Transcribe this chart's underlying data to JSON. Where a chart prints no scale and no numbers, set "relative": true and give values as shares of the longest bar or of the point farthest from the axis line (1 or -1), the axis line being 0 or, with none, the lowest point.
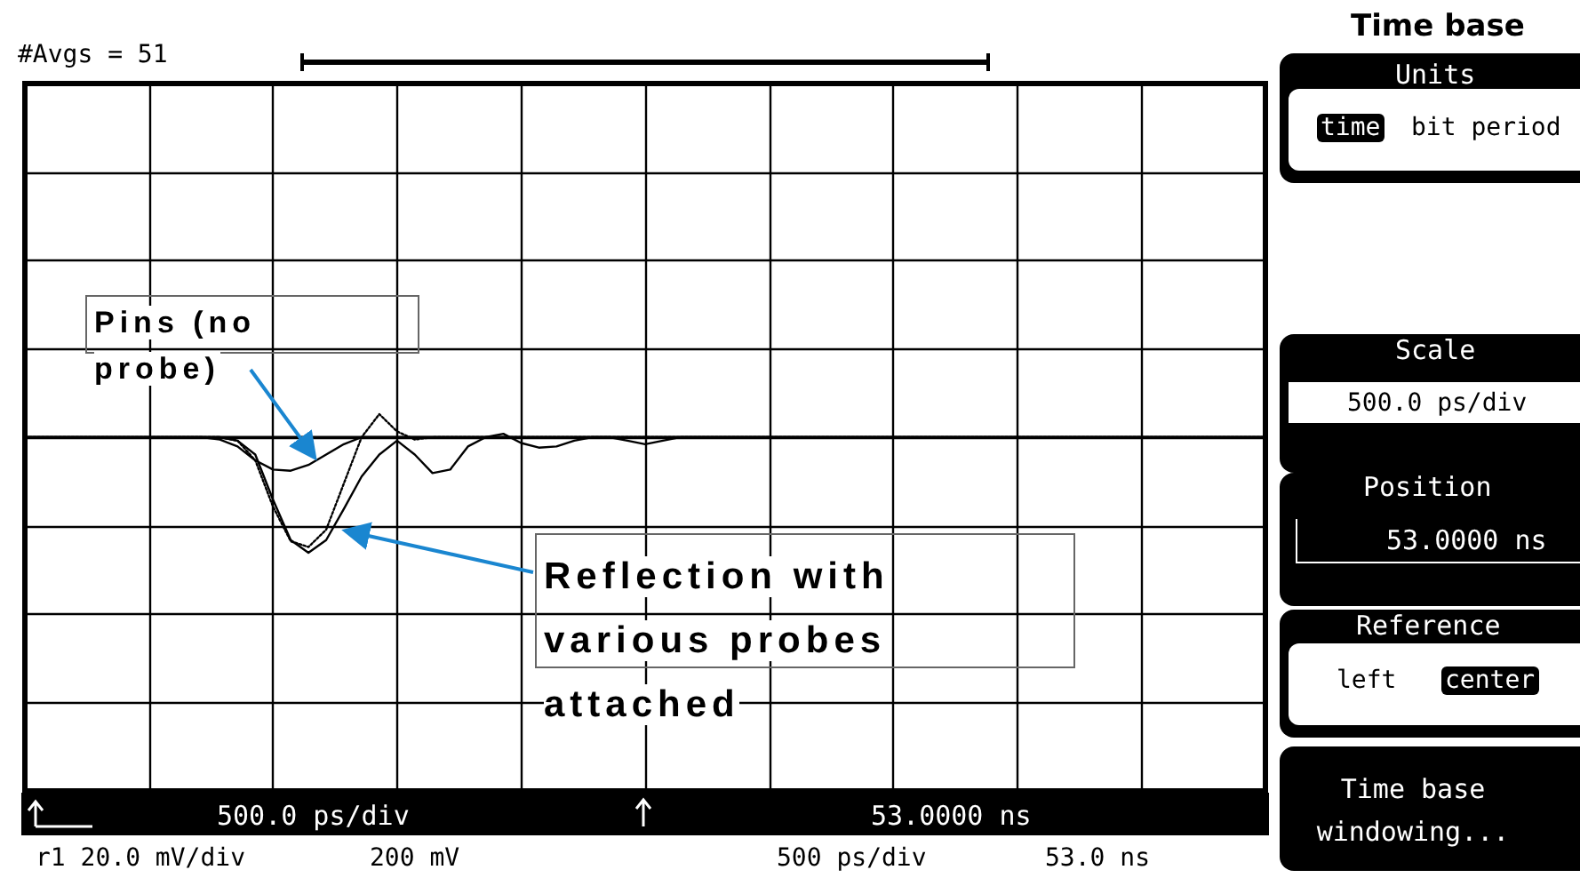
{
  "chart_data": {
    "type": "line",
    "relative": true,
    "grid": true,
    "marker": "none",
    "categories": [
      null,
      null,
      null,
      null,
      null,
      null,
      null,
      null,
      null,
      null,
      null,
      null,
      null,
      null,
      null,
      null,
      null,
      null,
      null,
      null,
      null,
      null,
      null,
      null,
      null,
      null,
      null,
      null,
      null,
      null,
      null,
      null,
      null,
      null,
      null,
      null,
      null,
      null,
      null,
      null,
      null,
      null,
      null,
      null,
      null,
      null,
      null,
      null,
      null,
      null,
      null,
      null,
      null,
      null,
      null,
      null,
      null,
      null,
      null,
      null,
      null,
      null,
      null,
      null,
      null,
      null,
      null,
      null,
      null,
      null,
      null
    ],
    "annotations": [
      "#Avgs = 51",
      "Pins (no probe)",
      "Reflection with various probes attached",
      "500.0 ps/div",
      "53.0000 ns",
      "r1 20.0 mV/div",
      "200 mV",
      "500 ps/div",
      "53.0 ns",
      "Time base",
      "Units",
      "time",
      "bit period",
      "Scale",
      "500.0 ps/div",
      "Position",
      "53.0000 ns",
      "Reference",
      "left",
      "center",
      "Time base windowing..."
    ],
    "series": [
      {
        "color": "#000000",
        "line_style": "solid",
        "values": [
          0,
          0,
          0,
          0,
          0,
          0,
          0,
          0,
          0,
          0,
          0,
          0,
          -0.03,
          -0.15,
          -0.54,
          -0.89,
          -1,
          -0.89,
          -0.62,
          -0.34,
          -0.15,
          -0.03,
          -0.15,
          -0.31,
          -0.28,
          -0.08,
          0,
          0.03,
          -0.05,
          -0.09,
          -0.08,
          -0.03,
          0,
          0,
          -0.03,
          -0.06,
          -0.03,
          0,
          0,
          0,
          0,
          0,
          0,
          0,
          0,
          0,
          0,
          0,
          0,
          0,
          0,
          0,
          0,
          0,
          0,
          0,
          0,
          0,
          0,
          0,
          0,
          0,
          0,
          0,
          0,
          0,
          0,
          0,
          0,
          0,
          0
        ]
      },
      {
        "color": "#000000",
        "line_style": "dotted",
        "values": [
          0,
          0,
          0,
          0,
          0,
          0,
          0,
          0,
          0,
          0,
          0,
          0,
          -0.03,
          -0.2,
          -0.6,
          -0.9,
          -0.95,
          -0.8,
          -0.4,
          0,
          0.2,
          0.05,
          -0.02,
          0,
          0,
          0,
          0,
          0,
          0,
          0,
          0,
          0,
          0,
          0,
          0,
          0,
          0,
          0,
          0,
          0,
          0,
          0,
          0,
          0,
          0,
          0,
          0,
          0,
          0,
          0,
          0,
          0,
          0,
          0,
          0,
          0,
          0,
          0,
          0,
          0,
          0,
          0,
          0,
          0,
          0,
          0,
          0,
          0,
          0,
          0,
          0
        ]
      },
      {
        "color": "#000000",
        "line_style": "solid",
        "values": [
          0,
          0,
          0,
          0,
          0,
          0,
          0,
          0,
          0,
          0,
          0,
          -0.02,
          -0.08,
          -0.2,
          -0.28,
          -0.29,
          -0.24,
          -0.15,
          -0.06,
          0,
          0,
          0,
          0,
          0,
          0,
          0,
          0,
          0,
          0,
          0,
          0,
          0,
          0,
          0,
          0,
          0,
          0,
          0,
          0,
          0,
          0,
          0,
          0,
          0,
          0,
          0,
          0,
          0,
          0,
          0,
          0,
          0,
          0,
          0,
          0,
          0,
          0,
          0,
          0,
          0,
          0,
          0,
          0,
          0,
          0,
          0,
          0,
          0,
          0,
          0,
          0
        ]
      }
    ]
  }
}
